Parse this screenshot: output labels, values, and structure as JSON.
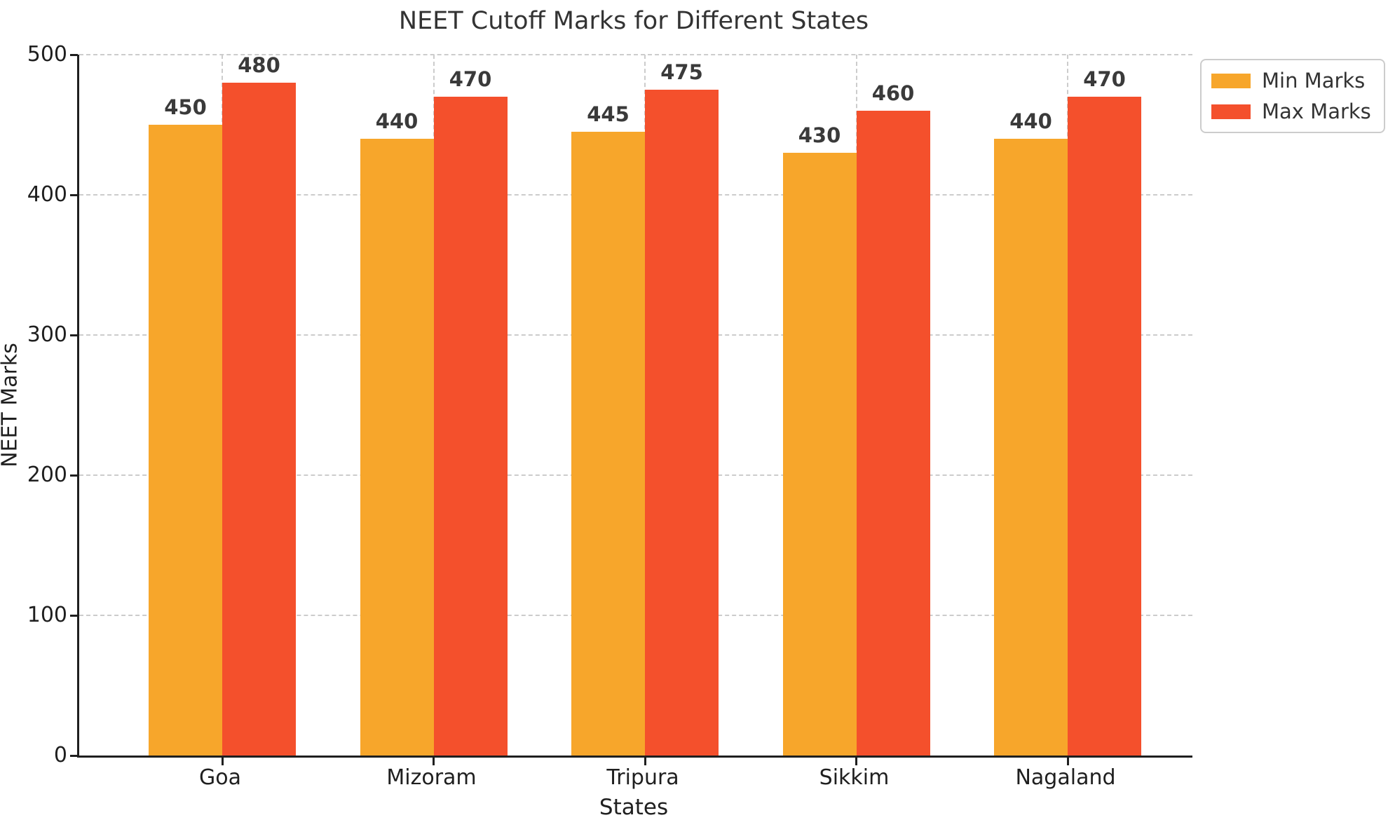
{
  "figure": {
    "background_color": "#ffffff",
    "spine_color": "#1f1f1f",
    "grid_color": "#cccccc",
    "tick_label_color": "#1f1f1f",
    "title_color": "#333333",
    "value_label_color": "#3a3a3a",
    "legend_border_color": "#cccccc"
  },
  "chart_data": {
    "type": "bar",
    "title": "NEET Cutoff Marks for Different States",
    "xlabel": "States",
    "ylabel": "NEET Marks",
    "categories": [
      "Goa",
      "Mizoram",
      "Tripura",
      "Sikkim",
      "Nagaland"
    ],
    "series": [
      {
        "name": "Min Marks",
        "color": "#F7A62B",
        "values": [
          450,
          440,
          445,
          430,
          440
        ]
      },
      {
        "name": "Max Marks",
        "color": "#F4502C",
        "values": [
          480,
          470,
          475,
          460,
          470
        ]
      }
    ],
    "ylim": [
      0,
      500
    ],
    "yticks": [
      0,
      100,
      200,
      300,
      400,
      500
    ],
    "grid": {
      "horizontal": true,
      "vertical": true,
      "style": "dashed"
    },
    "bar_value_labels": true,
    "legend": {
      "position": "upper-right-outside"
    }
  }
}
